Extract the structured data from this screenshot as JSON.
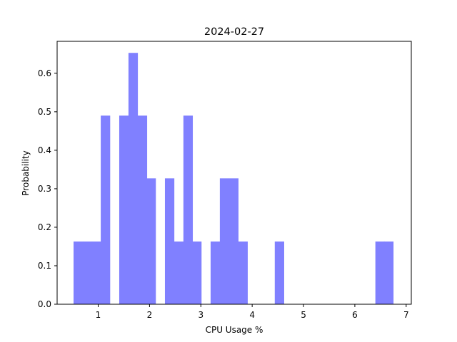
{
  "chart_data": {
    "type": "bar",
    "title": "2024-02-27",
    "xlabel": "CPU Usage %",
    "ylabel": "Probability",
    "xlim": [
      0.2,
      7.1
    ],
    "ylim": [
      0,
      0.683
    ],
    "grid": false,
    "legend": "none",
    "bar_color": "#8080ff",
    "bin_width": 0.178,
    "bins": [
      {
        "x0": 0.52,
        "value": 0.163
      },
      {
        "x0": 0.7,
        "value": 0.163
      },
      {
        "x0": 0.88,
        "value": 0.163
      },
      {
        "x0": 1.05,
        "value": 0.49
      },
      {
        "x0": 1.23,
        "value": 0.0
      },
      {
        "x0": 1.41,
        "value": 0.49
      },
      {
        "x0": 1.59,
        "value": 0.653
      },
      {
        "x0": 1.77,
        "value": 0.49
      },
      {
        "x0": 1.94,
        "value": 0.327
      },
      {
        "x0": 2.12,
        "value": 0.0
      },
      {
        "x0": 2.3,
        "value": 0.327
      },
      {
        "x0": 2.48,
        "value": 0.163
      },
      {
        "x0": 2.66,
        "value": 0.49
      },
      {
        "x0": 2.83,
        "value": 0.163
      },
      {
        "x0": 3.01,
        "value": 0.0
      },
      {
        "x0": 3.19,
        "value": 0.163
      },
      {
        "x0": 3.37,
        "value": 0.327
      },
      {
        "x0": 3.55,
        "value": 0.327
      },
      {
        "x0": 3.73,
        "value": 0.163
      },
      {
        "x0": 3.9,
        "value": 0.0
      },
      {
        "x0": 4.08,
        "value": 0.0
      },
      {
        "x0": 4.26,
        "value": 0.0
      },
      {
        "x0": 4.44,
        "value": 0.163
      },
      {
        "x0": 4.62,
        "value": 0.0
      },
      {
        "x0": 4.79,
        "value": 0.0
      },
      {
        "x0": 4.97,
        "value": 0.0
      },
      {
        "x0": 5.15,
        "value": 0.0
      },
      {
        "x0": 5.33,
        "value": 0.0
      },
      {
        "x0": 5.51,
        "value": 0.0
      },
      {
        "x0": 5.68,
        "value": 0.0
      },
      {
        "x0": 5.86,
        "value": 0.0
      },
      {
        "x0": 6.04,
        "value": 0.0
      },
      {
        "x0": 6.22,
        "value": 0.0
      },
      {
        "x0": 6.4,
        "value": 0.163
      },
      {
        "x0": 6.57,
        "value": 0.163
      }
    ],
    "x_ticks": [
      {
        "value": 1,
        "label": "1"
      },
      {
        "value": 2,
        "label": "2"
      },
      {
        "value": 3,
        "label": "3"
      },
      {
        "value": 4,
        "label": "4"
      },
      {
        "value": 5,
        "label": "5"
      },
      {
        "value": 6,
        "label": "6"
      },
      {
        "value": 7,
        "label": "7"
      }
    ],
    "y_ticks": [
      {
        "value": 0.0,
        "label": "0.0"
      },
      {
        "value": 0.1,
        "label": "0.1"
      },
      {
        "value": 0.2,
        "label": "0.2"
      },
      {
        "value": 0.3,
        "label": "0.3"
      },
      {
        "value": 0.4,
        "label": "0.4"
      },
      {
        "value": 0.5,
        "label": "0.5"
      },
      {
        "value": 0.6,
        "label": "0.6"
      }
    ]
  }
}
